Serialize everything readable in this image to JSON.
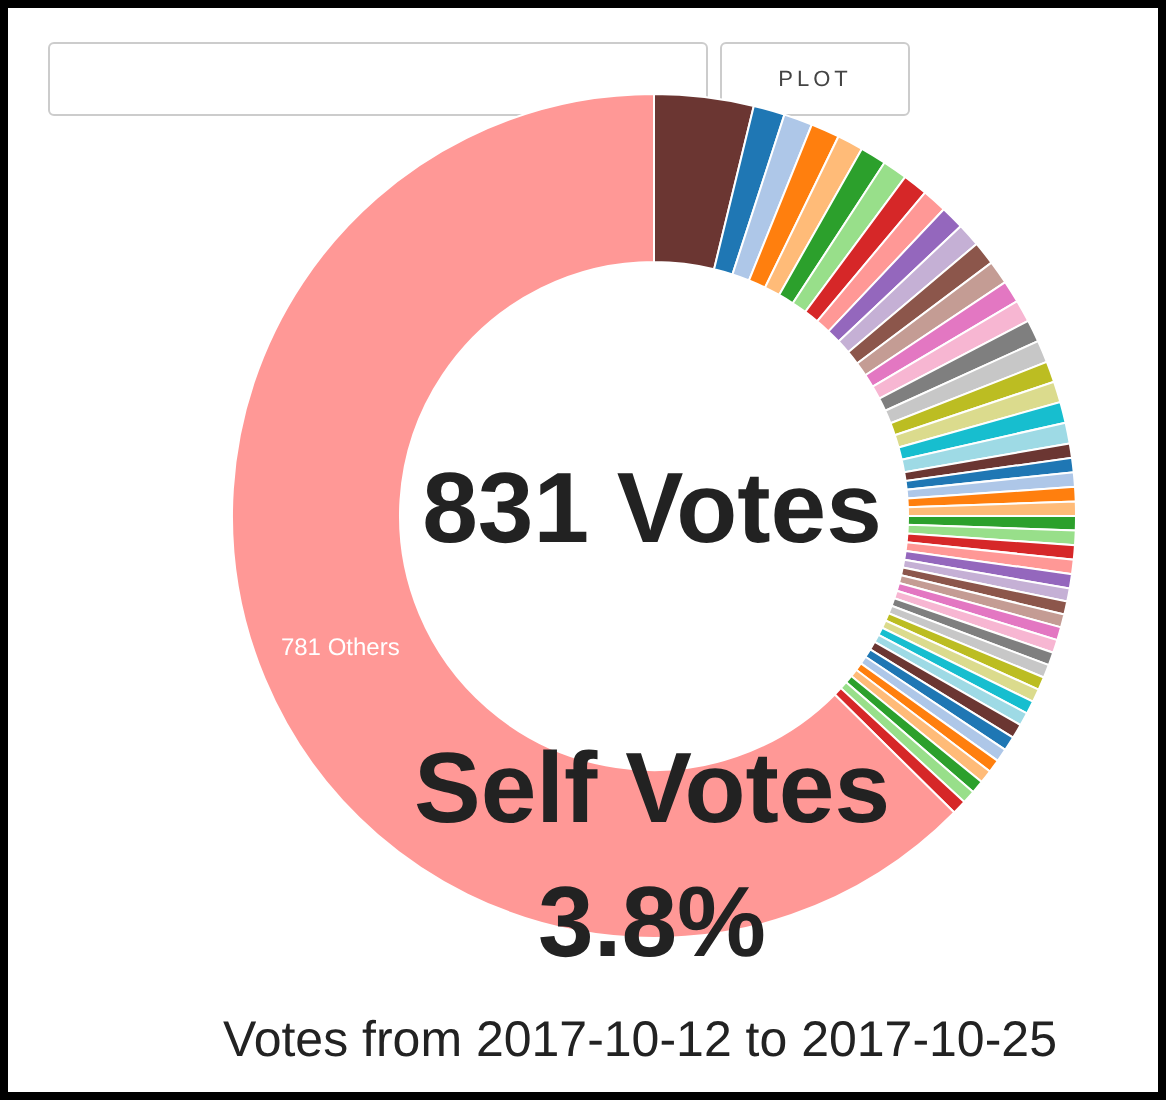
{
  "chart_data": {
    "type": "donut",
    "categories": [
      null,
      null,
      null,
      null,
      null,
      null,
      null,
      null,
      null,
      null,
      null,
      null,
      null,
      null,
      null,
      null,
      null,
      null,
      null,
      null,
      null,
      null,
      null,
      null,
      null,
      null,
      null,
      null,
      null,
      null,
      null,
      null,
      null,
      null,
      null,
      null,
      null,
      null,
      null,
      null,
      null,
      null,
      null,
      null,
      null,
      null,
      null,
      null,
      null,
      null,
      "781 Others"
    ],
    "values": [
      3.8,
      1.2,
      1.1,
      1.1,
      1.0,
      1.0,
      0.95,
      0.95,
      0.95,
      0.9,
      0.9,
      0.9,
      0.9,
      0.85,
      0.85,
      0.85,
      0.85,
      0.8,
      0.8,
      0.8,
      0.8,
      0.55,
      0.55,
      0.55,
      0.55,
      0.55,
      0.55,
      0.55,
      0.55,
      0.55,
      0.55,
      0.5,
      0.5,
      0.5,
      0.5,
      0.5,
      0.5,
      0.5,
      0.5,
      0.5,
      0.5,
      0.5,
      0.55,
      0.55,
      0.5,
      0.5,
      0.5,
      0.5,
      0.5,
      0.55,
      62.6
    ],
    "colors": [
      "#6b3632",
      "#1f77b4",
      "#aec7e8",
      "#ff7f0e",
      "#ffbb78",
      "#2ca02c",
      "#98df8a",
      "#d62728",
      "#ff9896",
      "#9467bd",
      "#c5b0d5",
      "#8c564b",
      "#c49c94",
      "#e377c2",
      "#f7b6d2",
      "#7f7f7f",
      "#c7c7c7",
      "#bcbd22",
      "#dbdb8d",
      "#17becf",
      "#9edae5",
      "#6b3632",
      "#1f77b4",
      "#aec7e8",
      "#ff7f0e",
      "#ffbb78",
      "#2ca02c",
      "#98df8a",
      "#d62728",
      "#ff9896",
      "#9467bd",
      "#c5b0d5",
      "#8c564b",
      "#c49c94",
      "#e377c2",
      "#f7b6d2",
      "#7f7f7f",
      "#c7c7c7",
      "#bcbd22",
      "#dbdb8d",
      "#17becf",
      "#9edae5",
      "#6b3632",
      "#1f77b4",
      "#aec7e8",
      "#ff7f0e",
      "#ffbb78",
      "#2ca02c",
      "#98df8a",
      "#d62728",
      "#ff9896"
    ],
    "annotations": [
      "PLOT",
      "831 Votes",
      "Self Votes",
      "3.8%",
      "Votes from 2017-10-12 to 2017-10-25"
    ]
  }
}
